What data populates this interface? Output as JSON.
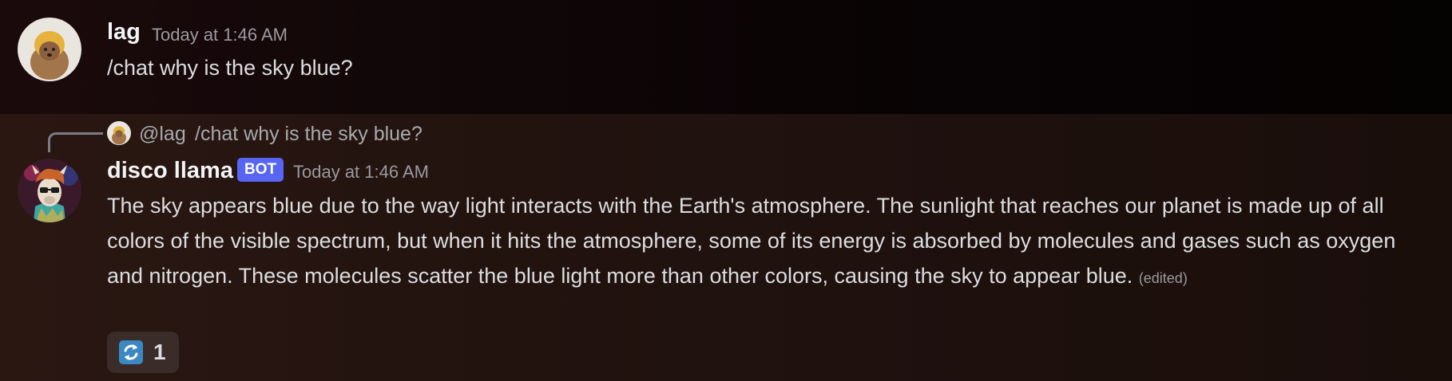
{
  "messages": [
    {
      "username": "lag",
      "timestamp": "Today at 1:46 AM",
      "text": "/chat why is the sky blue?"
    },
    {
      "reply_to": {
        "mention": "@lag",
        "text": "/chat why is the sky blue?"
      },
      "username": "disco llama",
      "badge": "BOT",
      "timestamp": "Today at 1:46 AM",
      "text": "The sky appears blue due to the way light interacts with the Earth's atmosphere. The sunlight that reaches our planet is made up of all colors of the visible spectrum, but when it hits the atmosphere, some of its energy is absorbed by molecules and gases such as oxygen and nitrogen. These molecules scatter the blue light more than other colors, causing the sky to appear blue.",
      "edited_label": "(edited)",
      "reactions": [
        {
          "icon": "repeat-arrows-icon",
          "count": "1"
        }
      ]
    }
  ],
  "colors": {
    "bot_badge": "#5865f2",
    "reaction_icon": "#3b88c3"
  }
}
